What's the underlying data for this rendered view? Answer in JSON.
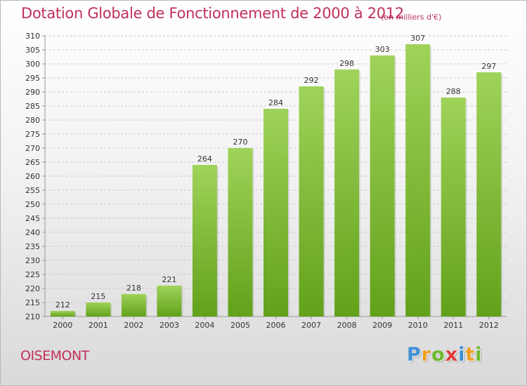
{
  "chart_data": {
    "type": "bar",
    "title": "Dotation Globale de Fonctionnement de 2000 à 2012",
    "subtitle": "(en milliers d'€)",
    "categories": [
      "2000",
      "2001",
      "2002",
      "2003",
      "2004",
      "2005",
      "2006",
      "2007",
      "2008",
      "2009",
      "2010",
      "2011",
      "2012"
    ],
    "values": [
      212,
      215,
      218,
      221,
      264,
      270,
      284,
      292,
      298,
      303,
      307,
      288,
      297
    ],
    "ylim": [
      210,
      310
    ],
    "ytick_step": 5,
    "grid": true,
    "bar_color_top": "#9fd35a",
    "bar_color_bottom": "#62a11a"
  },
  "commune": "OISEMONT",
  "logo": {
    "letters": [
      "P",
      "r",
      "o",
      "x",
      "i",
      "t",
      "i"
    ],
    "colors": [
      "#3d8fd6",
      "#f0a020",
      "#6cba2c",
      "#e03a3a",
      "#3d8fd6",
      "#f0a020",
      "#6cba2c"
    ]
  },
  "colors": {
    "accent": "#c0305a"
  }
}
